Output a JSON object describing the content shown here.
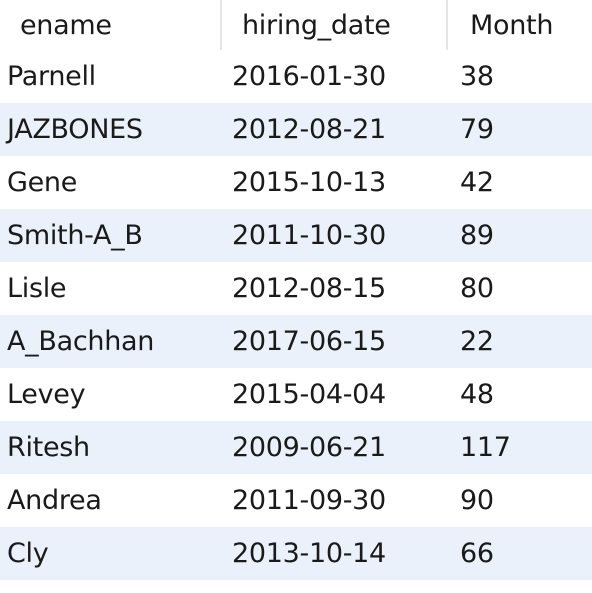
{
  "table": {
    "columns": [
      "ename",
      "hiring_date",
      "Month"
    ],
    "rows": [
      [
        "Parnell",
        "2016-01-30",
        "38"
      ],
      [
        "JAZBONES",
        "2012-08-21",
        "79"
      ],
      [
        "Gene",
        "2015-10-13",
        "42"
      ],
      [
        "Smith-A_B",
        "2011-10-30",
        "89"
      ],
      [
        "Lisle",
        "2012-08-15",
        "80"
      ],
      [
        "A_Bachhan",
        "2017-06-15",
        "22"
      ],
      [
        "Levey",
        "2015-04-04",
        "48"
      ],
      [
        "Ritesh",
        "2009-06-21",
        "117"
      ],
      [
        "Andrea",
        "2011-09-30",
        "90"
      ],
      [
        "Cly",
        "2013-10-14",
        "66"
      ]
    ]
  }
}
